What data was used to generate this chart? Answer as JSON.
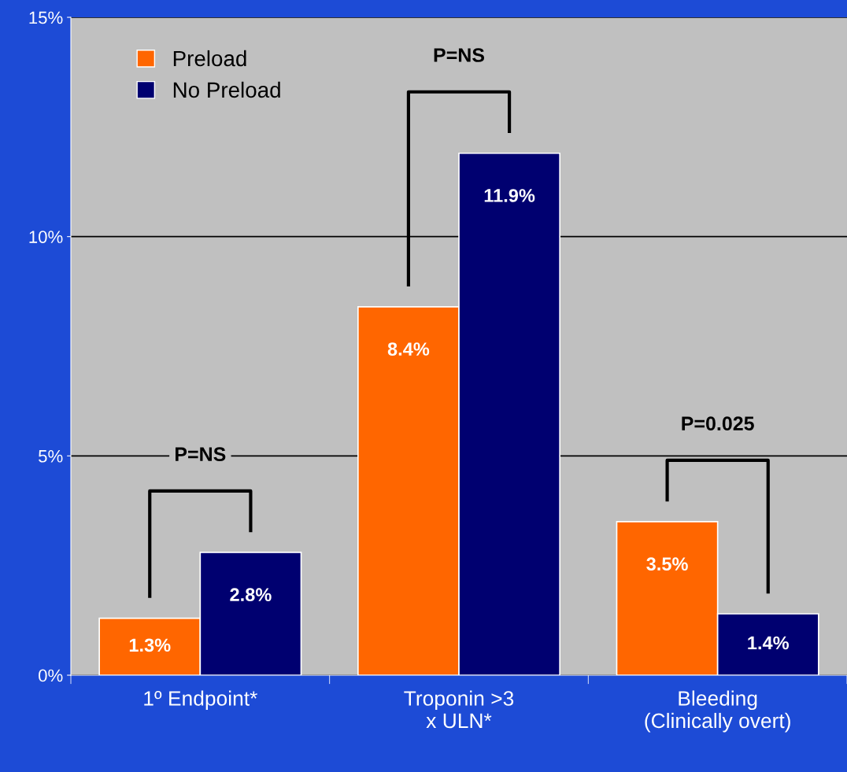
{
  "chart_data": {
    "type": "bar",
    "categories": [
      "1º Endpoint*",
      "Troponin >3\nx ULN*",
      "Bleeding\n(Clinically overt)"
    ],
    "series": [
      {
        "name": "Preload",
        "color": "#ff6600",
        "values": [
          1.3,
          8.4,
          3.5
        ],
        "value_labels": [
          "1.3%",
          "8.4%",
          "3.5%"
        ]
      },
      {
        "name": "No Preload",
        "color": "#000070",
        "values": [
          2.8,
          11.9,
          1.4
        ],
        "value_labels": [
          "2.8%",
          "11.9%",
          "1.4%"
        ]
      }
    ],
    "ylim": [
      0,
      15
    ],
    "yticks": [
      {
        "value": 0,
        "label": "0%"
      },
      {
        "value": 5,
        "label": "5%"
      },
      {
        "value": 10,
        "label": "10%"
      },
      {
        "value": 15,
        "label": "15%"
      }
    ],
    "grid": "y",
    "legend": "top left",
    "annotations": [
      "P=NS",
      "P=NS",
      "P=0.025"
    ]
  }
}
